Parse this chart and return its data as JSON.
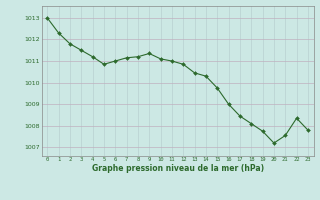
{
  "x": [
    0,
    1,
    2,
    3,
    4,
    5,
    6,
    7,
    8,
    9,
    10,
    11,
    12,
    13,
    14,
    15,
    16,
    17,
    18,
    19,
    20,
    21,
    22,
    23
  ],
  "y": [
    1013.0,
    1012.3,
    1011.8,
    1011.5,
    1011.2,
    1010.85,
    1011.0,
    1011.15,
    1011.2,
    1011.35,
    1011.1,
    1011.0,
    1010.85,
    1010.45,
    1010.3,
    1009.75,
    1009.0,
    1008.45,
    1008.1,
    1007.75,
    1007.2,
    1007.55,
    1008.35,
    1007.8
  ],
  "line_color": "#2d6a2d",
  "marker_color": "#2d6a2d",
  "bg_color": "#cce8e4",
  "grid_color_h": "#c0b0c0",
  "grid_color_v": "#b8d0d0",
  "title": "Graphe pression niveau de la mer (hPa)",
  "ylim_min": 1006.6,
  "ylim_max": 1013.55,
  "yticks": [
    1007,
    1008,
    1009,
    1010,
    1011,
    1012,
    1013
  ],
  "xticks": [
    0,
    1,
    2,
    3,
    4,
    5,
    6,
    7,
    8,
    9,
    10,
    11,
    12,
    13,
    14,
    15,
    16,
    17,
    18,
    19,
    20,
    21,
    22,
    23
  ]
}
